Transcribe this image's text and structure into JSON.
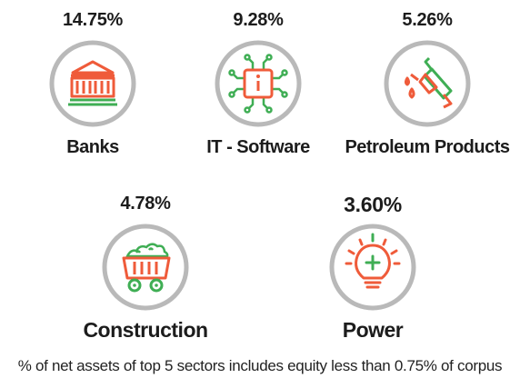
{
  "colors": {
    "circle": "#b9b9b9",
    "accent_orange": "#ef5b3a",
    "accent_green": "#3fae54",
    "text": "#1c1c1c"
  },
  "sectors": [
    {
      "name": "Banks",
      "percent": "14.75%",
      "icon": "bank-building-icon"
    },
    {
      "name": "IT - Software",
      "percent": "9.28%",
      "icon": "microchip-icon"
    },
    {
      "name": "Petroleum Products",
      "percent": "5.26%",
      "icon": "fuel-nozzle-icon"
    },
    {
      "name": "Construction",
      "percent": "4.78%",
      "icon": "mining-cart-icon"
    },
    {
      "name": "Power",
      "percent": "3.60%",
      "icon": "light-bulb-icon"
    }
  ],
  "footnote": "% of net assets of top 5 sectors includes equity less than 0.75% of corpus"
}
